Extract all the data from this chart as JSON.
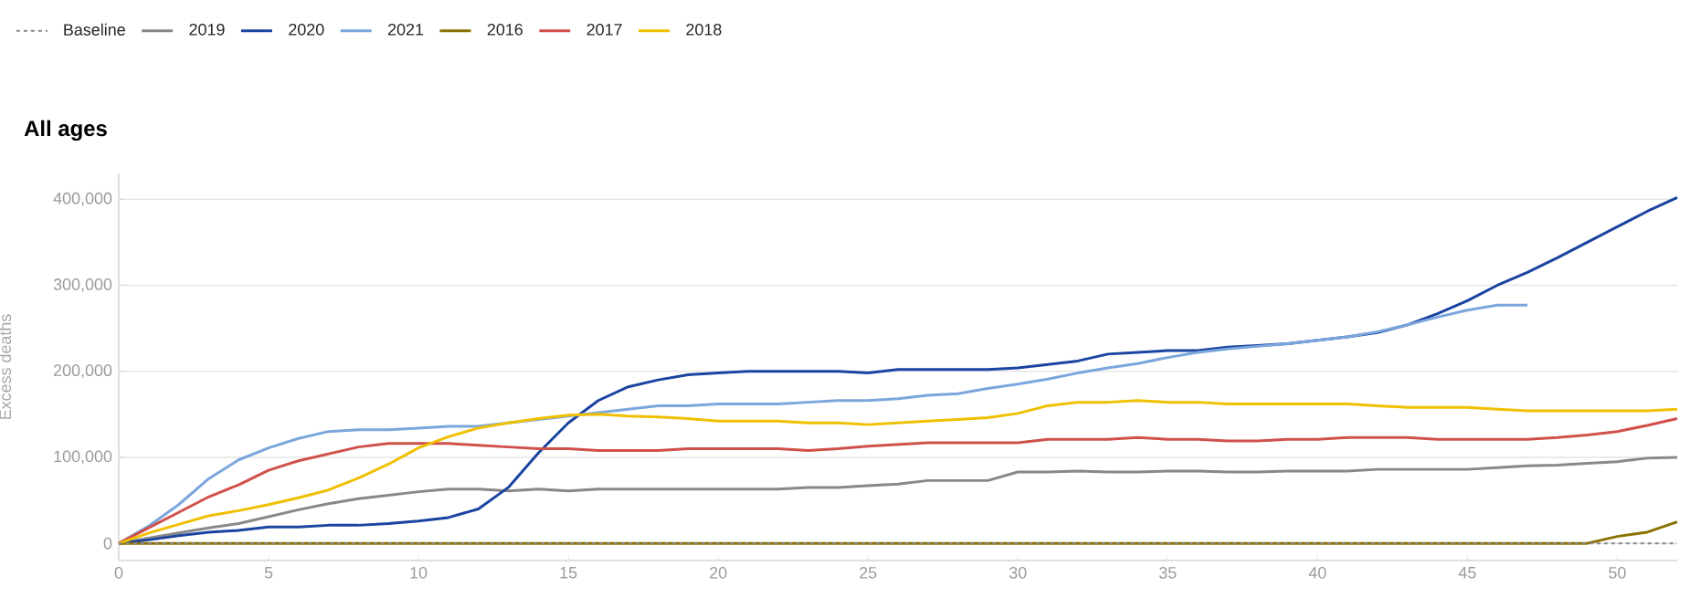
{
  "chart_data": {
    "type": "line",
    "title": "All ages",
    "ylabel": "Excess deaths",
    "legend": "top left",
    "grid": "y",
    "marker": "none",
    "xlim": [
      0,
      52
    ],
    "ylim": [
      -20000,
      430000
    ],
    "xticks": [
      0,
      5,
      10,
      15,
      20,
      25,
      30,
      35,
      40,
      45,
      50
    ],
    "yticks": [
      0,
      {
        "value": 100000,
        "label": "100,000"
      },
      {
        "value": 200000,
        "label": "200,000"
      },
      {
        "value": 300000,
        "label": "300,000"
      },
      {
        "value": 400000,
        "label": "400,000"
      }
    ],
    "x": [
      0,
      1,
      2,
      3,
      4,
      5,
      6,
      7,
      8,
      9,
      10,
      11,
      12,
      13,
      14,
      15,
      16,
      17,
      18,
      19,
      20,
      21,
      22,
      23,
      24,
      25,
      26,
      27,
      28,
      29,
      30,
      31,
      32,
      33,
      34,
      35,
      36,
      37,
      38,
      39,
      40,
      41,
      42,
      43,
      44,
      45,
      46,
      47,
      48,
      49,
      50,
      51,
      52
    ],
    "series": [
      {
        "name": "Baseline",
        "color": "#888888",
        "line_style": "dashed",
        "values": [
          0,
          0,
          0,
          0,
          0,
          0,
          0,
          0,
          0,
          0,
          0,
          0,
          0,
          0,
          0,
          0,
          0,
          0,
          0,
          0,
          0,
          0,
          0,
          0,
          0,
          0,
          0,
          0,
          0,
          0,
          0,
          0,
          0,
          0,
          0,
          0,
          0,
          0,
          0,
          0,
          0,
          0,
          0,
          0,
          0,
          0,
          0,
          0,
          0,
          0,
          0,
          0,
          0
        ]
      },
      {
        "name": "2019",
        "color": "#888888",
        "values": [
          0,
          6000,
          12000,
          18000,
          23000,
          31000,
          39000,
          46000,
          52000,
          56000,
          60000,
          63000,
          63000,
          61000,
          63000,
          61000,
          63000,
          63000,
          63000,
          63000,
          63000,
          63000,
          63000,
          65000,
          65000,
          67000,
          69000,
          73000,
          73000,
          73000,
          83000,
          83000,
          84000,
          83000,
          83000,
          84000,
          84000,
          83000,
          83000,
          84000,
          84000,
          84000,
          86000,
          86000,
          86000,
          86000,
          88000,
          90000,
          91000,
          93000,
          95000,
          99000,
          100000
        ]
      },
      {
        "name": "2020",
        "color": "#1a44a0",
        "values": [
          0,
          4000,
          9000,
          13000,
          15000,
          19000,
          19000,
          21000,
          21000,
          23000,
          26000,
          30000,
          40000,
          65000,
          105000,
          140000,
          166000,
          182000,
          190000,
          196000,
          198000,
          200000,
          200000,
          200000,
          200000,
          198000,
          202000,
          202000,
          202000,
          202000,
          204000,
          208000,
          212000,
          220000,
          222000,
          224000,
          224000,
          228000,
          230000,
          232000,
          236000,
          240000,
          245000,
          254000,
          267000,
          282000,
          300000,
          315000,
          332000,
          350000,
          368000,
          386000,
          402000
        ]
      },
      {
        "name": "2021",
        "color": "#7aa6dc",
        "values": [
          0,
          20000,
          45000,
          75000,
          97000,
          111000,
          122000,
          130000,
          132000,
          132000,
          134000,
          136000,
          136000,
          140000,
          144000,
          148000,
          152000,
          156000,
          160000,
          160000,
          162000,
          162000,
          162000,
          164000,
          166000,
          166000,
          168000,
          172000,
          174000,
          180000,
          185000,
          191000,
          198000,
          204000,
          209000,
          216000,
          222000,
          226000,
          229000,
          232000,
          236000,
          240000,
          246000,
          254000,
          263000,
          271000,
          277000,
          277000,
          null,
          null,
          null,
          null,
          null
        ]
      },
      {
        "name": "2016",
        "color": "#8a7200",
        "values": [
          0,
          0,
          0,
          0,
          0,
          0,
          0,
          0,
          0,
          0,
          0,
          0,
          0,
          0,
          0,
          0,
          0,
          0,
          0,
          0,
          0,
          0,
          0,
          0,
          0,
          0,
          0,
          0,
          0,
          0,
          0,
          0,
          0,
          0,
          0,
          0,
          0,
          0,
          0,
          0,
          0,
          0,
          0,
          0,
          0,
          0,
          0,
          0,
          0,
          0,
          8000,
          13000,
          25000
        ]
      },
      {
        "name": "2017",
        "color": "#d0504a",
        "values": [
          0,
          18000,
          36000,
          54000,
          68000,
          85000,
          96000,
          104000,
          112000,
          116000,
          116000,
          116000,
          114000,
          112000,
          110000,
          110000,
          108000,
          108000,
          108000,
          110000,
          110000,
          110000,
          110000,
          108000,
          110000,
          113000,
          115000,
          117000,
          117000,
          117000,
          117000,
          121000,
          121000,
          121000,
          123000,
          121000,
          121000,
          119000,
          119000,
          121000,
          121000,
          123000,
          123000,
          123000,
          121000,
          121000,
          121000,
          121000,
          123000,
          126000,
          130000,
          137000,
          145000
        ]
      },
      {
        "name": "2018",
        "color": "#f0c000",
        "values": [
          0,
          12000,
          22000,
          32000,
          38000,
          45000,
          53000,
          62000,
          76000,
          92000,
          111000,
          124000,
          134000,
          140000,
          145000,
          149000,
          150000,
          148000,
          147000,
          145000,
          142000,
          142000,
          142000,
          140000,
          140000,
          138000,
          140000,
          142000,
          144000,
          146000,
          151000,
          160000,
          164000,
          164000,
          166000,
          164000,
          164000,
          162000,
          162000,
          162000,
          162000,
          162000,
          160000,
          158000,
          158000,
          158000,
          156000,
          154000,
          154000,
          154000,
          154000,
          154000,
          156000
        ]
      }
    ]
  }
}
